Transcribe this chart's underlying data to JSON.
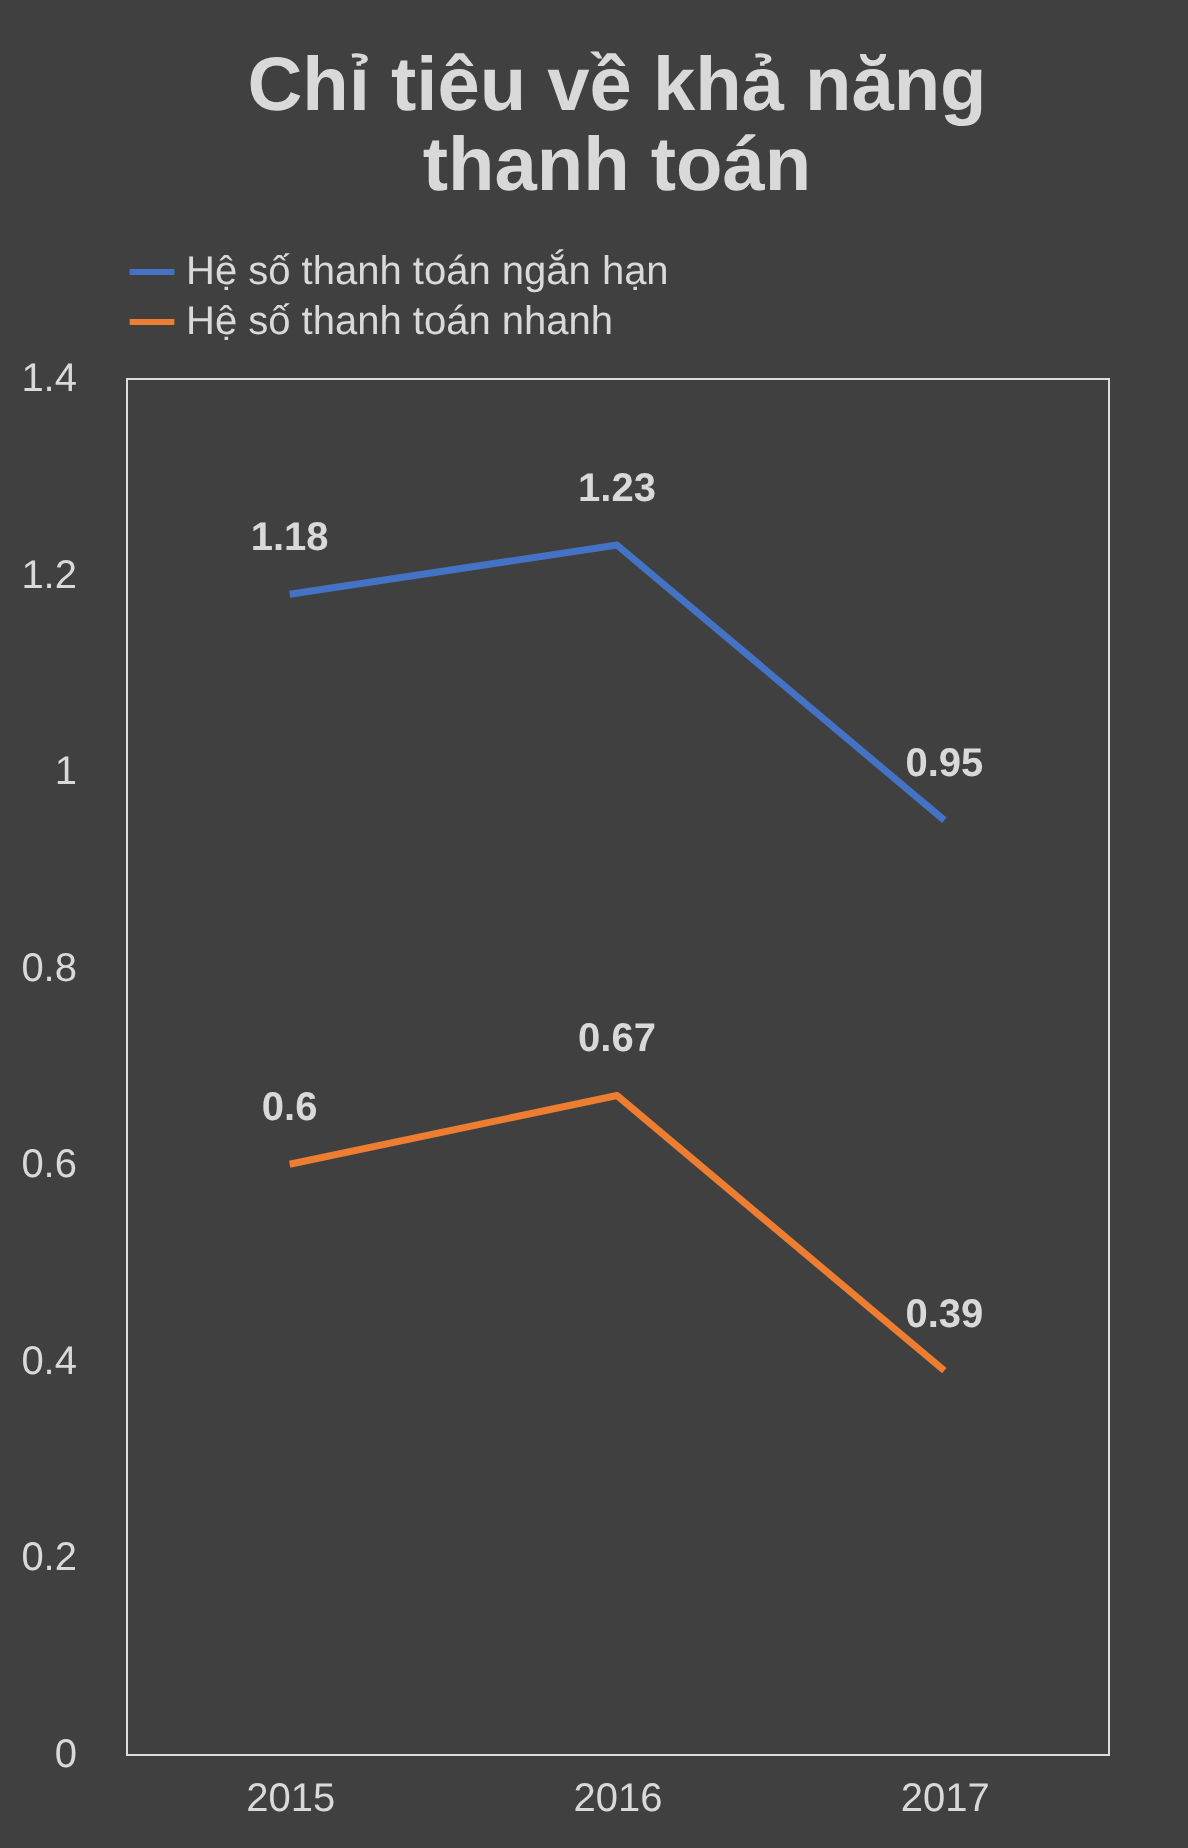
{
  "chart_data": {
    "type": "line",
    "title": "Chỉ tiêu về khả năng thanh toán",
    "categories": [
      "2015",
      "2016",
      "2017"
    ],
    "series": [
      {
        "name": "Hệ số thanh toán ngắn hạn",
        "color": "#4472c4",
        "values": [
          1.18,
          1.23,
          0.95
        ]
      },
      {
        "name": "Hệ số thanh toán nhanh",
        "color": "#ed7d31",
        "values": [
          0.6,
          0.67,
          0.39
        ]
      }
    ],
    "ylim": [
      0,
      1.4
    ],
    "yticks": [
      0,
      0.2,
      0.4,
      0.6,
      0.8,
      1,
      1.2,
      1.4
    ],
    "grid": false,
    "legend": "top",
    "marker": "none",
    "line_style": "solid",
    "data_labels": true
  }
}
